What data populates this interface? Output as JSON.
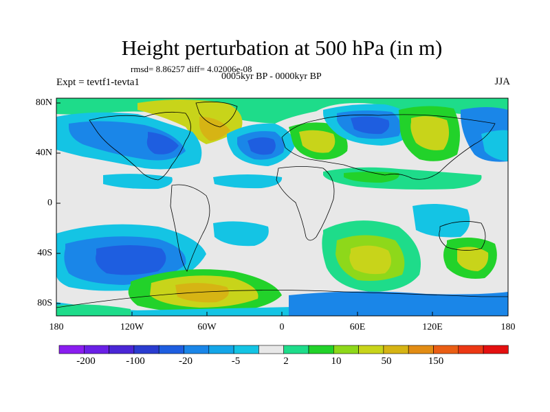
{
  "title": "Height perturbation at 500 hPa (in m)",
  "stats": "rmsd= 8.86257 diff= 4.02006e-08",
  "period": "0005kyr BP - 0000kyr BP",
  "experiment": "Expt = tevtf1-tevta1",
  "season": "JJA",
  "lat_ticks": [
    "80N",
    "40N",
    "0",
    "40S",
    "80S"
  ],
  "lon_ticks": [
    "180",
    "120W",
    "60W",
    "0",
    "60E",
    "120E",
    "180"
  ],
  "colorbar": {
    "colors": [
      "#8a1df0",
      "#6a20e6",
      "#4a26d6",
      "#2a3cd0",
      "#1e5ee0",
      "#1a86e8",
      "#14a6e8",
      "#14c4e4",
      "#e8e8e8",
      "#1edc8a",
      "#22d22a",
      "#8ed81a",
      "#c8d41a",
      "#d6b414",
      "#e28c14",
      "#ea5e14",
      "#ec3814",
      "#e41010"
    ],
    "labels": [
      "-200",
      "-100",
      "-20",
      "-5",
      "2",
      "10",
      "50",
      "150"
    ]
  },
  "colors": {
    "neutral": "#e8e8e8",
    "coast": "#000000"
  }
}
